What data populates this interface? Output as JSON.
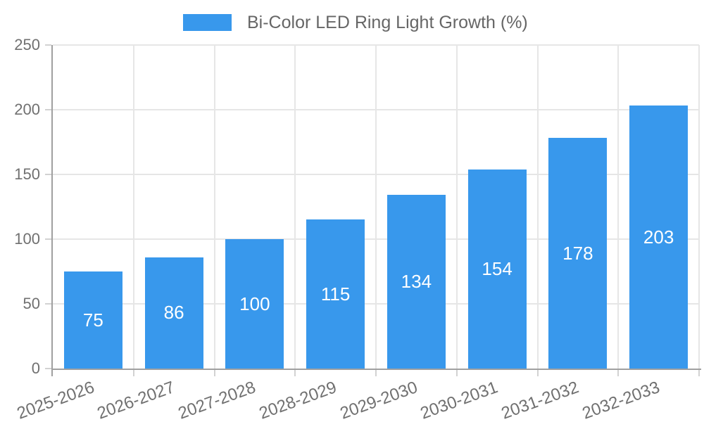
{
  "chart_data": {
    "type": "bar",
    "title": "Bi-Color LED Ring Light Growth (%)",
    "categories": [
      "2025-2026",
      "2026-2027",
      "2027-2028",
      "2028-2029",
      "2029-2030",
      "2030-2031",
      "2031-2032",
      "2032-2033"
    ],
    "values": [
      75,
      86,
      100,
      115,
      134,
      154,
      178,
      203
    ],
    "xlabel": "",
    "ylabel": "",
    "ylim": [
      0,
      250
    ],
    "yticks": [
      0,
      50,
      100,
      150,
      200,
      250
    ],
    "grid": "both",
    "value_labels_inside_bars": true,
    "legend": {
      "position": "top-center",
      "entries": [
        {
          "label": "Bi-Color LED Ring Light Growth (%)",
          "color": "#3898ec"
        }
      ]
    },
    "colors": {
      "bar": "#3898ec",
      "value_label": "#ffffff",
      "grid_line": "#e6e6e6",
      "axis_line": "#a0a0a0",
      "tick_mark": "#d2d2d2",
      "tick_label": "#707070",
      "legend_label": "#666666",
      "background": "#ffffff"
    }
  }
}
